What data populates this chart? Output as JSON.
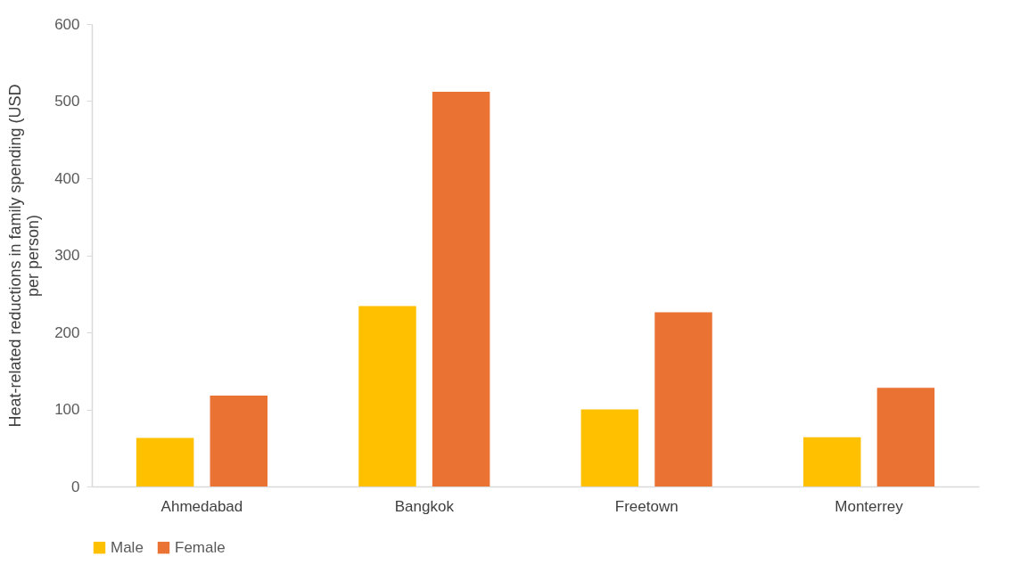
{
  "chart_data": {
    "type": "bar",
    "ylabel": "Heat-related reductions in family spending (USD per person)",
    "categories": [
      "Ahmedabad",
      "Bangkok",
      "Freetown",
      "Monterrey"
    ],
    "series": [
      {
        "name": "Male",
        "color": "#ffc000",
        "values": [
          63,
          234,
          100,
          64
        ]
      },
      {
        "name": "Female",
        "color": "#ea7333",
        "values": [
          118,
          512,
          226,
          128
        ]
      }
    ],
    "ylim": [
      0,
      600
    ],
    "yticks": [
      0,
      100,
      200,
      300,
      400,
      500,
      600
    ],
    "grid": false,
    "legend": "bottom"
  }
}
